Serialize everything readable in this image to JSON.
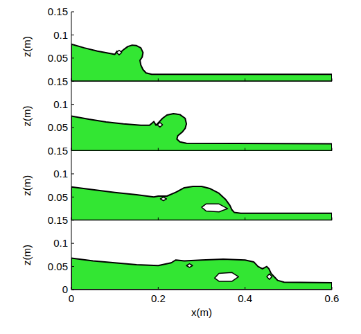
{
  "chart_data": [
    {
      "type": "polygon",
      "ylabel": "z(m)",
      "xlim": [
        0,
        0.6
      ],
      "ylim": [
        0,
        0.15
      ],
      "xticks": [
        0,
        0.2,
        0.4,
        0.6
      ],
      "yticks": [
        0.05,
        0.1,
        0.15
      ],
      "tick_labels": "y",
      "series": [
        {
          "color": "#33e633",
          "x": [
            0,
            0.03,
            0.06,
            0.09,
            0.1,
            0.105,
            0.11,
            0.12,
            0.13,
            0.14,
            0.15,
            0.16,
            0.165,
            0.163,
            0.158,
            0.16,
            0.165,
            0.172,
            0.185,
            0.6,
            0.6,
            0
          ],
          "values": [
            0.08,
            0.072,
            0.065,
            0.06,
            0.058,
            0.065,
            0.06,
            0.068,
            0.075,
            0.078,
            0.077,
            0.072,
            0.062,
            0.052,
            0.045,
            0.035,
            0.025,
            0.018,
            0.015,
            0.015,
            0,
            0
          ]
        },
        {
          "color": "#ffffff",
          "x": [
            0.104,
            0.11,
            0.116,
            0.11
          ],
          "values": [
            0.062,
            0.067,
            0.062,
            0.057
          ]
        }
      ]
    },
    {
      "type": "polygon",
      "ylabel": "z(m)",
      "xlim": [
        0,
        0.6
      ],
      "ylim": [
        0,
        0.15
      ],
      "xticks": [
        0,
        0.2,
        0.4,
        0.6
      ],
      "yticks": [
        0.05,
        0.1,
        0.15
      ],
      "tick_labels": "y",
      "series": [
        {
          "color": "#33e633",
          "x": [
            0,
            0.04,
            0.08,
            0.12,
            0.16,
            0.18,
            0.19,
            0.195,
            0.2,
            0.21,
            0.22,
            0.235,
            0.25,
            0.262,
            0.265,
            0.262,
            0.255,
            0.245,
            0.243,
            0.25,
            0.265,
            0.6,
            0.6,
            0
          ],
          "values": [
            0.075,
            0.068,
            0.062,
            0.058,
            0.055,
            0.055,
            0.063,
            0.055,
            0.06,
            0.07,
            0.077,
            0.08,
            0.078,
            0.07,
            0.058,
            0.048,
            0.04,
            0.032,
            0.025,
            0.019,
            0.016,
            0.015,
            0,
            0
          ]
        },
        {
          "color": "#ffffff",
          "x": [
            0.198,
            0.204,
            0.21,
            0.204
          ],
          "values": [
            0.056,
            0.061,
            0.056,
            0.051
          ]
        }
      ]
    },
    {
      "type": "polygon",
      "ylabel": "z(m)",
      "xlim": [
        0,
        0.6
      ],
      "ylim": [
        0,
        0.15
      ],
      "xticks": [
        0,
        0.2,
        0.4,
        0.6
      ],
      "yticks": [
        0.05,
        0.1,
        0.15
      ],
      "tick_labels": "y",
      "series": [
        {
          "color": "#33e633",
          "x": [
            0,
            0.05,
            0.1,
            0.15,
            0.19,
            0.2,
            0.22,
            0.24,
            0.26,
            0.28,
            0.3,
            0.32,
            0.34,
            0.355,
            0.365,
            0.37,
            0.375,
            0.39,
            0.6,
            0.6,
            0
          ],
          "values": [
            0.072,
            0.066,
            0.06,
            0.055,
            0.05,
            0.052,
            0.052,
            0.06,
            0.07,
            0.073,
            0.073,
            0.068,
            0.058,
            0.045,
            0.032,
            0.022,
            0.017,
            0.015,
            0.015,
            0,
            0
          ]
        },
        {
          "color": "#ffffff",
          "x": [
            0.3,
            0.31,
            0.34,
            0.36,
            0.34,
            0.31
          ],
          "values": [
            0.028,
            0.035,
            0.035,
            0.025,
            0.018,
            0.02
          ]
        },
        {
          "color": "#ffffff",
          "x": [
            0.205,
            0.212,
            0.219,
            0.212
          ],
          "values": [
            0.046,
            0.05,
            0.046,
            0.042
          ]
        }
      ]
    },
    {
      "type": "polygon",
      "ylabel": "z(m)",
      "xlabel": "x(m)",
      "xlim": [
        0,
        0.6
      ],
      "ylim": [
        0,
        0.15
      ],
      "xticks": [
        0,
        0.2,
        0.4,
        0.6
      ],
      "yticks": [
        0,
        0.05,
        0.1,
        0.15
      ],
      "series": [
        {
          "color": "#33e633",
          "x": [
            0,
            0.05,
            0.1,
            0.15,
            0.2,
            0.23,
            0.24,
            0.26,
            0.3,
            0.35,
            0.4,
            0.42,
            0.43,
            0.44,
            0.45,
            0.455,
            0.46,
            0.47,
            0.475,
            0.49,
            0.6,
            0.6,
            0
          ],
          "values": [
            0.068,
            0.062,
            0.058,
            0.054,
            0.052,
            0.058,
            0.064,
            0.062,
            0.064,
            0.066,
            0.064,
            0.06,
            0.05,
            0.045,
            0.05,
            0.045,
            0.035,
            0.025,
            0.02,
            0.016,
            0.015,
            0,
            0
          ]
        },
        {
          "color": "#ffffff",
          "x": [
            0.33,
            0.34,
            0.37,
            0.385,
            0.37,
            0.34
          ],
          "values": [
            0.025,
            0.035,
            0.037,
            0.028,
            0.018,
            0.018
          ]
        },
        {
          "color": "#ffffff",
          "x": [
            0.265,
            0.272,
            0.279,
            0.272
          ],
          "values": [
            0.052,
            0.056,
            0.052,
            0.048
          ]
        },
        {
          "color": "#ffffff",
          "x": [
            0.45,
            0.456,
            0.462,
            0.456
          ],
          "values": [
            0.028,
            0.034,
            0.028,
            0.022
          ]
        }
      ]
    }
  ]
}
